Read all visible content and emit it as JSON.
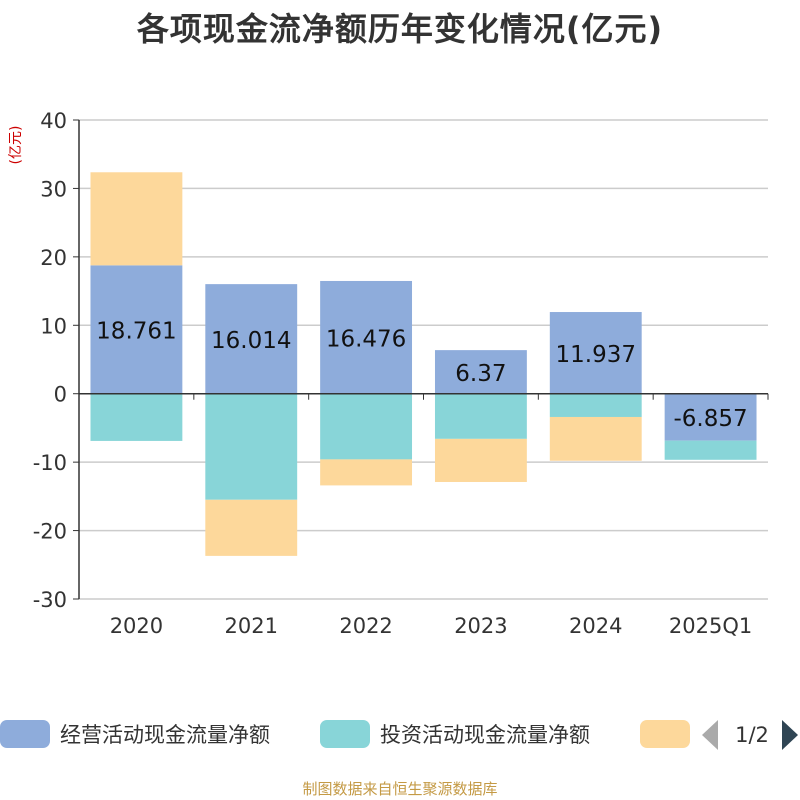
{
  "title": "各项现金流净额历年变化情况(亿元)",
  "unit_label": "(亿元)",
  "source": "制图数据来自恒生聚源数据库",
  "legend": {
    "page_indicator": "1/2"
  },
  "chart_data": {
    "type": "bar",
    "stacked": true,
    "categories": [
      "2020",
      "2021",
      "2022",
      "2023",
      "2024",
      "2025Q1"
    ],
    "ylim": [
      -30,
      40
    ],
    "yticks": [
      -30,
      -20,
      -10,
      0,
      10,
      20,
      30,
      40
    ],
    "grid": true,
    "legend_position": "bottom",
    "series": [
      {
        "name": "经营活动现金流量净额",
        "color": "#8eacdb",
        "values": [
          18.761,
          16.014,
          16.476,
          6.37,
          11.937,
          -6.857
        ],
        "labels": [
          "18.761",
          "16.014",
          "16.476",
          "6.37",
          "11.937",
          "-6.857"
        ]
      },
      {
        "name": "投资活动现金流量净额",
        "color": "#88d5d8",
        "values": [
          -6.9,
          -15.5,
          -9.6,
          -6.6,
          -3.4,
          -2.8
        ]
      },
      {
        "name": "",
        "color": "#fdd89b",
        "values": [
          13.6,
          -8.2,
          -3.8,
          -6.3,
          -6.4,
          0
        ]
      }
    ]
  }
}
